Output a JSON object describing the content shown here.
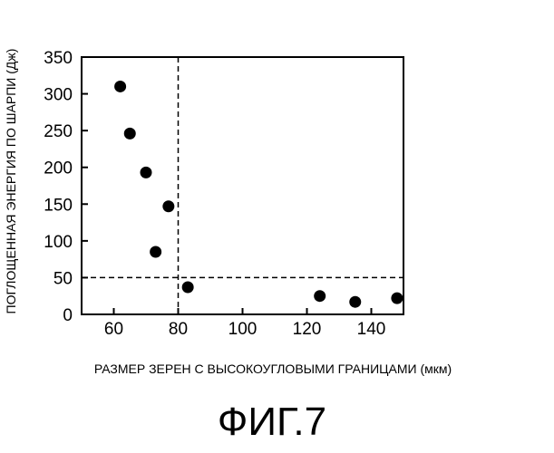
{
  "chart_data": {
    "type": "scatter",
    "xlabel": "РАЗМЕР ЗЕРЕН С ВЫСОКОУГЛОВЫМИ ГРАНИЦАМИ (мкм)",
    "ylabel": "ПОГЛОЩЕННАЯ ЭНЕРГИЯ ПО ШАРПИ (Дж)",
    "xlim": [
      50,
      150
    ],
    "ylim": [
      0,
      350
    ],
    "x_ticks": [
      60,
      80,
      100,
      120,
      140
    ],
    "y_ticks": [
      0,
      50,
      100,
      150,
      200,
      250,
      300,
      350
    ],
    "grid": false,
    "reference_lines": {
      "x": 80,
      "y": 50
    },
    "series": [
      {
        "points": [
          {
            "x": 62,
            "y": 310
          },
          {
            "x": 65,
            "y": 246
          },
          {
            "x": 70,
            "y": 193
          },
          {
            "x": 73,
            "y": 85
          },
          {
            "x": 77,
            "y": 147
          },
          {
            "x": 83,
            "y": 37
          },
          {
            "x": 124,
            "y": 25
          },
          {
            "x": 135,
            "y": 17
          },
          {
            "x": 148,
            "y": 22
          }
        ]
      }
    ],
    "figure_label": "ФИГ.7"
  }
}
